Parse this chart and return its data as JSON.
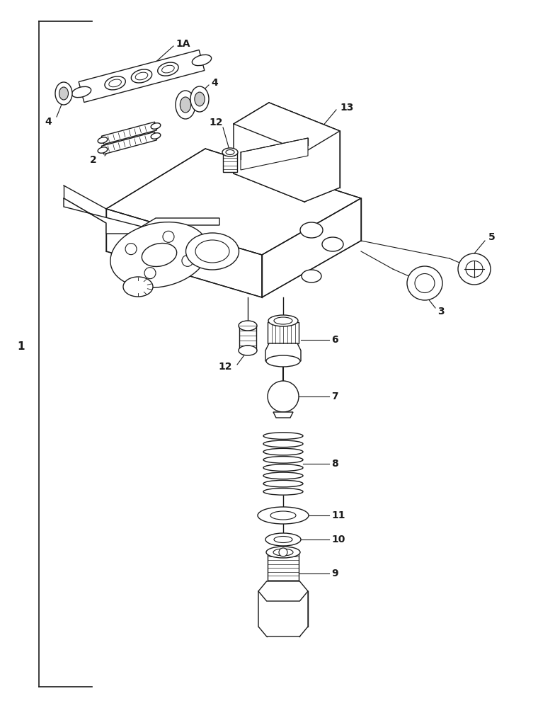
{
  "bg_color": "#ffffff",
  "line_color": "#1a1a1a",
  "fig_width": 7.6,
  "fig_height": 10.0,
  "dpi": 100,
  "lw": 1.0
}
